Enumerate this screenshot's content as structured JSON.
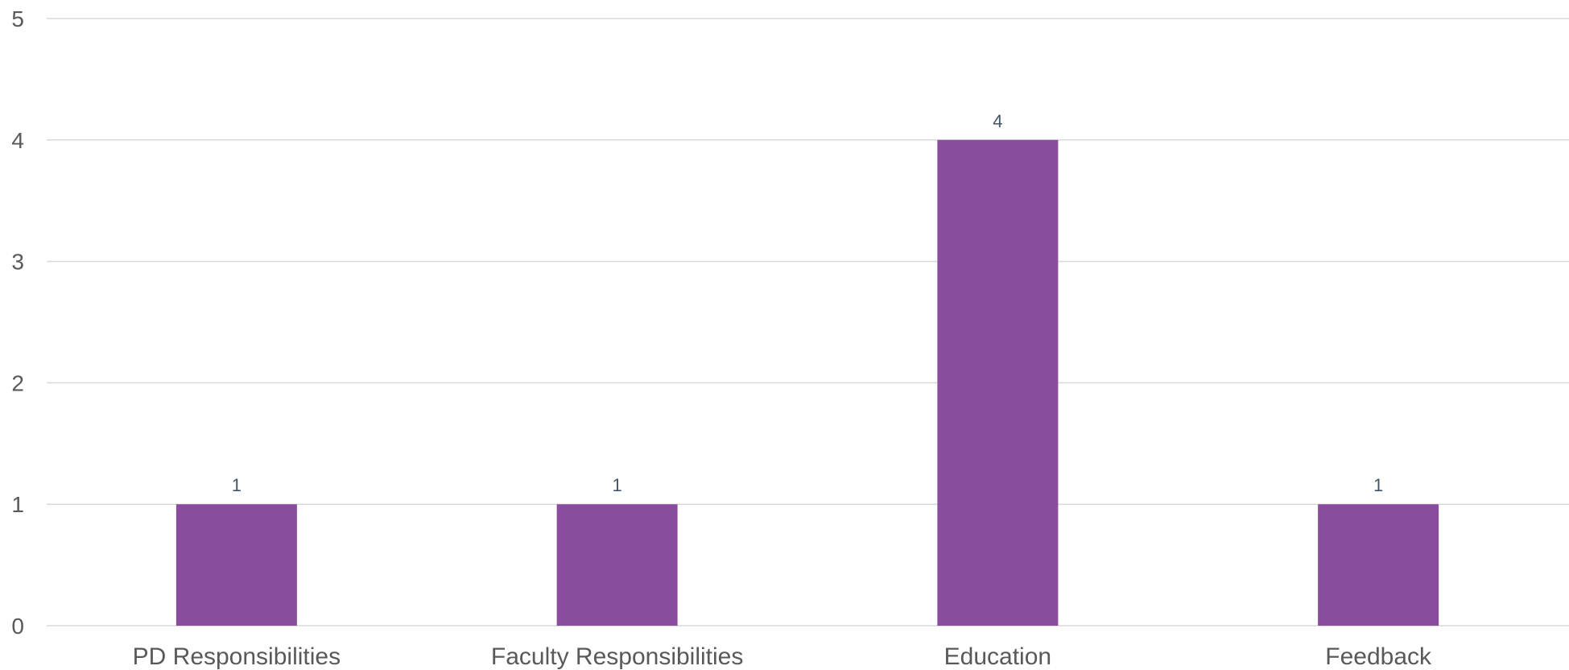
{
  "chart_data": {
    "type": "bar",
    "categories": [
      "PD Responsibilities",
      "Faculty Responsibilities",
      "Education",
      "Feedback"
    ],
    "values": [
      1,
      1,
      4,
      1
    ],
    "data_labels": [
      "1",
      "1",
      "4",
      "1"
    ],
    "y_ticks": [
      "0",
      "1",
      "2",
      "3",
      "4",
      "5"
    ],
    "ylim": [
      0,
      5
    ],
    "grid": true,
    "legend": "none",
    "bar_color": "#8a4d9e",
    "label_color": "#44546a",
    "tick_color": "#595959",
    "grid_color": "#d9d9d9"
  }
}
